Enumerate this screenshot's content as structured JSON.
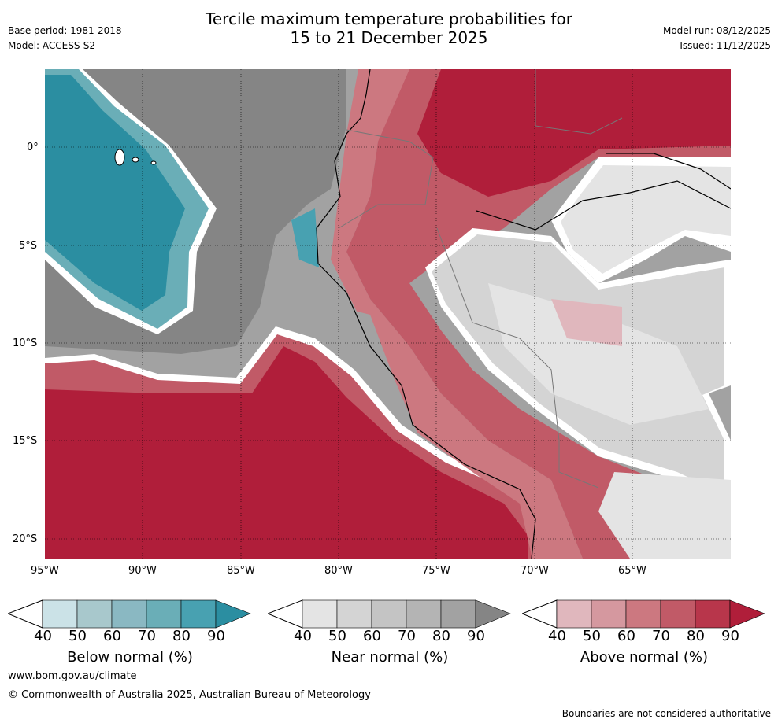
{
  "header": {
    "title_line1": "Tercile maximum temperature probabilities for",
    "title_line2": "15 to 21 December 2025",
    "base_period": "Base period: 1981-2018",
    "model": "Model: ACCESS-S2",
    "model_run": "Model run: 08/12/2025",
    "issued": "Issued: 11/12/2025"
  },
  "map": {
    "lat_labels": [
      "0°",
      "5°S",
      "10°S",
      "15°S",
      "20°S"
    ],
    "lon_labels": [
      "95°W",
      "90°W",
      "85°W",
      "80°W",
      "75°W",
      "70°W",
      "65°W"
    ]
  },
  "colorbars": [
    {
      "label": "Below normal (%)",
      "ticks": [
        "40",
        "50",
        "60",
        "70",
        "80",
        "90"
      ],
      "colors": [
        "#cbe2e7",
        "#a8c8cc",
        "#8ab8c2",
        "#6aaeb7",
        "#48a1b1",
        "#2b8ea1"
      ]
    },
    {
      "label": "Near normal (%)",
      "ticks": [
        "40",
        "50",
        "60",
        "70",
        "80",
        "90"
      ],
      "colors": [
        "#e4e4e4",
        "#d4d4d4",
        "#c4c4c4",
        "#b4b4b4",
        "#a2a2a2",
        "#858585"
      ]
    },
    {
      "label": "Above normal (%)",
      "ticks": [
        "40",
        "50",
        "60",
        "70",
        "80",
        "90"
      ],
      "colors": [
        "#e0b7bd",
        "#d5989f",
        "#cc7880",
        "#c15a67",
        "#b8364b",
        "#b01e3a"
      ]
    }
  ],
  "footer": {
    "url": "www.bom.gov.au/climate",
    "copyright": "© Commonwealth of Australia 2025, Australian Bureau of Meteorology",
    "disclaimer": "Boundaries are not considered authoritative"
  }
}
